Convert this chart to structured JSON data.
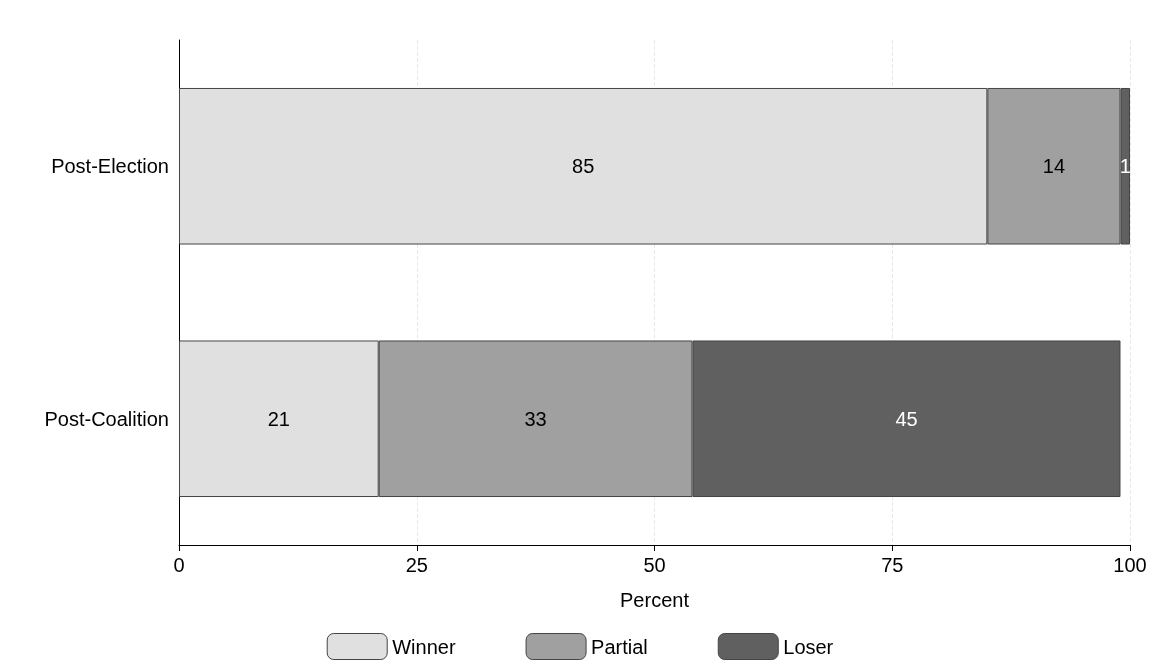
{
  "chart_data": {
    "type": "bar",
    "orientation": "horizontal",
    "stacked": true,
    "xlabel": "Percent",
    "categories": [
      "Post-Election",
      "Post-Coalition"
    ],
    "series": [
      {
        "name": "Winner",
        "color": "#e0e0e0",
        "values": [
          85,
          21
        ]
      },
      {
        "name": "Partial",
        "color": "#a0a0a0",
        "values": [
          14,
          33
        ]
      },
      {
        "name": "Loser",
        "color": "#606060",
        "values": [
          1,
          45
        ]
      }
    ],
    "xlim": [
      0,
      100
    ],
    "xticks": [
      0,
      25,
      50,
      75,
      100
    ],
    "grid": "x",
    "legend": "bottom",
    "data_labels": true
  }
}
